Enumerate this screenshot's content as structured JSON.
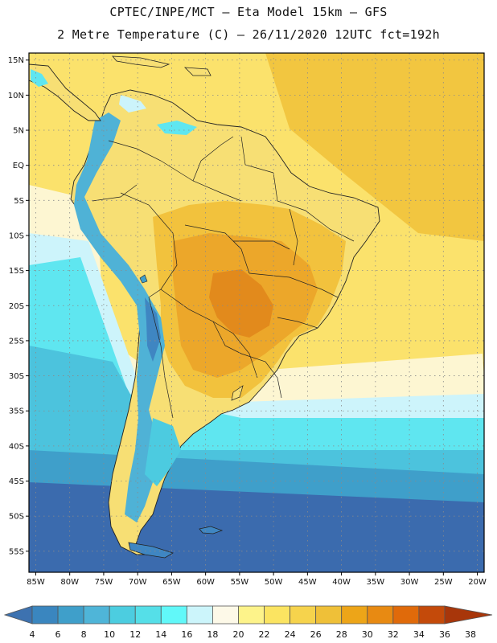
{
  "header": {
    "line1": "CPTEC/INPE/MCT –  Eta Model 15km – GFS",
    "line2": "2 Metre Temperature (C) – 26/11/2020 12UTC fct=192h"
  },
  "map": {
    "lon_labels": [
      "85W",
      "80W",
      "75W",
      "70W",
      "65W",
      "60W",
      "55W",
      "50W",
      "45W",
      "40W",
      "35W",
      "30W",
      "25W",
      "20W"
    ],
    "lat_labels": [
      "15N",
      "10N",
      "5N",
      "EQ",
      "5S",
      "10S",
      "15S",
      "20S",
      "25S",
      "30S",
      "35S",
      "40S",
      "45S",
      "50S",
      "55S"
    ],
    "lon_range": [
      -86,
      -19
    ],
    "lat_range": [
      16,
      -58
    ],
    "grid": true
  },
  "colorbar": {
    "ticks": [
      "4",
      "6",
      "8",
      "10",
      "12",
      "14",
      "16",
      "18",
      "20",
      "22",
      "24",
      "26",
      "28",
      "30",
      "32",
      "34",
      "36",
      "38"
    ],
    "colors": [
      "#3d72b0",
      "#3a86bf",
      "#3f9fca",
      "#4fb5d8",
      "#4ccde0",
      "#55dfe8",
      "#61f8f9",
      "#ccf5fb",
      "#fdf9e8",
      "#fdf38a",
      "#fbe461",
      "#f6d34c",
      "#efc038",
      "#eda518",
      "#e88a12",
      "#e06a0a",
      "#c44a0a",
      "#a8360a"
    ]
  },
  "palette": {
    "ocean_cold": "#3a65a8",
    "ocean_cool": "#3f88c4",
    "ocean_mid": "#4cc3dd",
    "ocean_cyan": "#5fe8f0",
    "ocean_pale": "#ccf4fb",
    "ocean_warm": "#fdf6cc",
    "ocean_yellow": "#fbe16a",
    "land_warm": "#f6d14b",
    "land_hot": "#eeb23a",
    "land_hotter": "#e58f20",
    "andes": "#4a90c8",
    "border": "#222222",
    "gridline": "#8a8a8a"
  }
}
